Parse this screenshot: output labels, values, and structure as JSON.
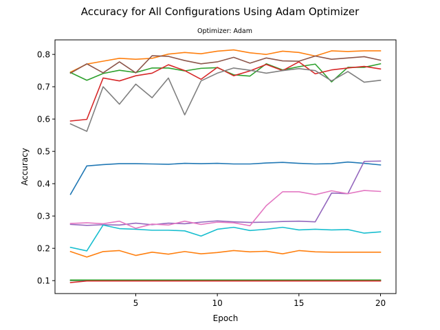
{
  "chart_data": {
    "type": "line",
    "title": "Accuracy for All Configurations Using Adam Optimizer",
    "subtitle": "Optimizer: Adam",
    "xlabel": "Epoch",
    "ylabel": "Accuracy",
    "xlim": [
      0.05,
      20.95
    ],
    "ylim": [
      0.06,
      0.845
    ],
    "xticks": [
      5,
      10,
      15,
      20
    ],
    "yticks": [
      0.1,
      0.2,
      0.3,
      0.4,
      0.5,
      0.6,
      0.7,
      0.8
    ],
    "grid": false,
    "x": [
      1,
      2,
      3,
      4,
      5,
      6,
      7,
      8,
      9,
      10,
      11,
      12,
      13,
      14,
      15,
      16,
      17,
      18,
      19,
      20
    ],
    "series": [
      {
        "color": "#1f77b4",
        "values": [
          0.367,
          0.455,
          0.459,
          0.462,
          0.462,
          0.461,
          0.46,
          0.463,
          0.462,
          0.463,
          0.461,
          0.461,
          0.464,
          0.466,
          0.463,
          0.461,
          0.462,
          0.467,
          0.463,
          0.458
        ]
      },
      {
        "color": "#ff7f0e",
        "values": [
          0.745,
          0.77,
          0.779,
          0.788,
          0.785,
          0.788,
          0.801,
          0.806,
          0.802,
          0.81,
          0.814,
          0.805,
          0.8,
          0.81,
          0.806,
          0.795,
          0.811,
          0.809,
          0.811,
          0.811
        ]
      },
      {
        "color": "#2ca02c",
        "values": [
          0.744,
          0.72,
          0.741,
          0.751,
          0.744,
          0.758,
          0.758,
          0.749,
          0.757,
          0.759,
          0.737,
          0.733,
          0.771,
          0.752,
          0.762,
          0.77,
          0.715,
          0.76,
          0.76,
          0.771
        ]
      },
      {
        "color": "#d62728",
        "values": [
          0.594,
          0.599,
          0.727,
          0.718,
          0.734,
          0.742,
          0.768,
          0.75,
          0.723,
          0.76,
          0.734,
          0.749,
          0.769,
          0.75,
          0.777,
          0.74,
          0.752,
          0.758,
          0.763,
          0.755
        ]
      },
      {
        "color": "#9467bd",
        "values": [
          0.274,
          0.271,
          0.273,
          0.272,
          0.278,
          0.273,
          0.278,
          0.276,
          0.281,
          0.285,
          0.282,
          0.28,
          0.281,
          0.283,
          0.284,
          0.282,
          0.371,
          0.369,
          0.469,
          0.47
        ]
      },
      {
        "color": "#8c564b",
        "values": [
          0.742,
          0.771,
          0.743,
          0.777,
          0.743,
          0.796,
          0.794,
          0.781,
          0.771,
          0.777,
          0.791,
          0.773,
          0.789,
          0.78,
          0.779,
          0.795,
          0.785,
          0.789,
          0.793,
          0.782
        ]
      },
      {
        "color": "#e377c2",
        "values": [
          0.277,
          0.279,
          0.276,
          0.284,
          0.262,
          0.275,
          0.272,
          0.284,
          0.274,
          0.281,
          0.279,
          0.27,
          0.332,
          0.375,
          0.375,
          0.366,
          0.378,
          0.369,
          0.379,
          0.376
        ]
      },
      {
        "color": "#7f7f7f",
        "values": [
          0.585,
          0.562,
          0.7,
          0.646,
          0.708,
          0.666,
          0.727,
          0.613,
          0.718,
          0.742,
          0.758,
          0.751,
          0.742,
          0.75,
          0.756,
          0.75,
          0.718,
          0.747,
          0.714,
          0.72
        ]
      },
      {
        "color": "#bcbd22",
        "values": [
          0.1,
          0.1,
          0.1,
          0.1,
          0.1,
          0.1,
          0.1,
          0.1,
          0.1,
          0.1,
          0.1,
          0.1,
          0.1,
          0.1,
          0.1,
          0.1,
          0.1,
          0.1,
          0.1,
          0.1
        ]
      },
      {
        "color": "#17becf",
        "values": [
          0.203,
          0.192,
          0.272,
          0.261,
          0.259,
          0.256,
          0.256,
          0.254,
          0.238,
          0.259,
          0.265,
          0.255,
          0.259,
          0.265,
          0.257,
          0.259,
          0.257,
          0.258,
          0.247,
          0.251
        ]
      },
      {
        "color": "#1f77b4",
        "values": [
          0.101,
          0.101,
          0.101,
          0.101,
          0.101,
          0.101,
          0.101,
          0.101,
          0.101,
          0.101,
          0.101,
          0.101,
          0.101,
          0.101,
          0.101,
          0.101,
          0.101,
          0.101,
          0.101,
          0.101
        ]
      },
      {
        "color": "#ff7f0e",
        "values": [
          0.19,
          0.173,
          0.19,
          0.193,
          0.178,
          0.188,
          0.182,
          0.19,
          0.183,
          0.187,
          0.193,
          0.189,
          0.191,
          0.183,
          0.193,
          0.189,
          0.188,
          0.188,
          0.188,
          0.188
        ]
      },
      {
        "color": "#2ca02c",
        "values": [
          0.102,
          0.102,
          0.102,
          0.102,
          0.102,
          0.102,
          0.102,
          0.102,
          0.102,
          0.102,
          0.102,
          0.102,
          0.102,
          0.102,
          0.102,
          0.102,
          0.102,
          0.102,
          0.102,
          0.102
        ]
      },
      {
        "color": "#d62728",
        "values": [
          0.094,
          0.099,
          0.099,
          0.099,
          0.099,
          0.099,
          0.099,
          0.099,
          0.099,
          0.099,
          0.099,
          0.099,
          0.099,
          0.099,
          0.099,
          0.099,
          0.099,
          0.099,
          0.099,
          0.099
        ]
      }
    ]
  }
}
